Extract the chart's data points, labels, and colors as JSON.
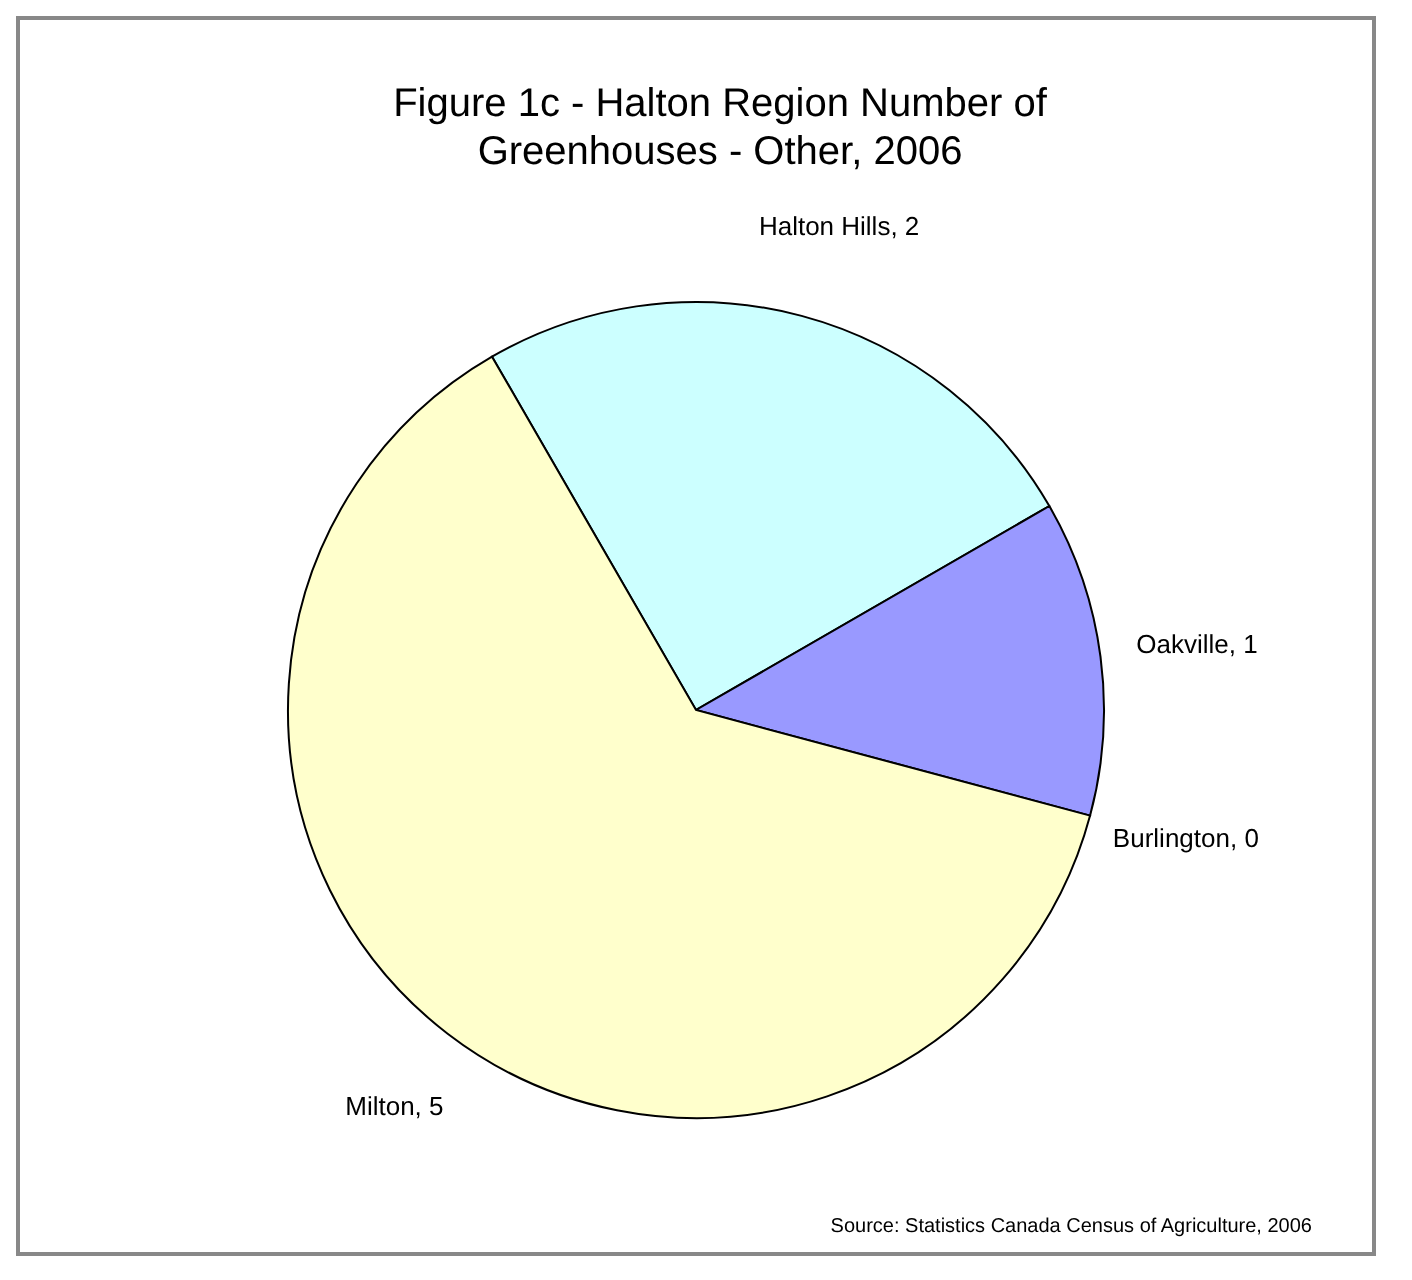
{
  "chart_data": {
    "type": "pie",
    "title": "Figure 1c - Halton Region Number of Greenhouses - Other, 2006",
    "categories": [
      "Halton Hills",
      "Oakville",
      "Burlington",
      "Milton"
    ],
    "values": [
      2,
      1,
      0,
      5
    ],
    "value_labels": [
      ", 2",
      ", 1",
      ", 0",
      ", 5"
    ],
    "colors": [
      "#ccffff",
      "#9999ff",
      null,
      "#ffffcc"
    ],
    "annotations": [
      "Source: Statistics Canada Census of Agriculture, 2006"
    ]
  }
}
